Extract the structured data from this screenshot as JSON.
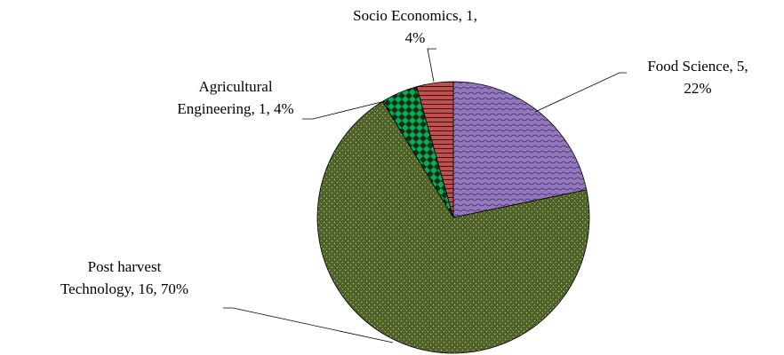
{
  "chart_data": {
    "type": "pie",
    "categories": [
      "Food Science",
      "Post harvest Technology",
      "Agricultural Engineering",
      "Socio Economics"
    ],
    "values": [
      5,
      16,
      1,
      1
    ],
    "value_labels": [
      "Food Science, 5, 22%",
      "Post harvest Technology, 16, 70%",
      "Agricultural Engineering, 1, 4%",
      "Socio Economics, 1, 4%"
    ],
    "colors": [
      "#8064a2",
      "#4f6228",
      "#00b050",
      "#c0504d"
    ]
  }
}
